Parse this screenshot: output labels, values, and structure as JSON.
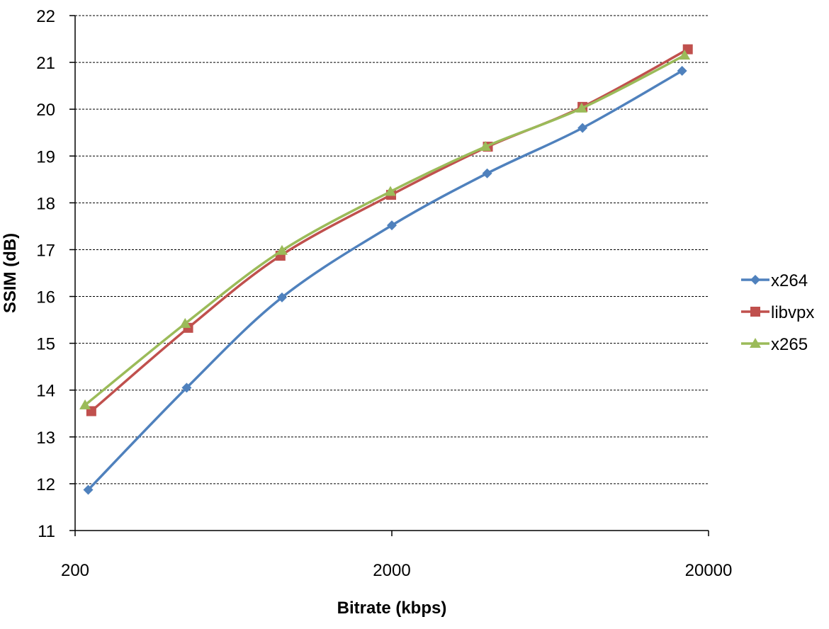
{
  "chart_data": {
    "type": "line",
    "xlabel": "Bitrate (kbps)",
    "ylabel": "SSIM (dB)",
    "xscale": "log",
    "xlim": [
      200,
      20000
    ],
    "ylim": [
      11,
      22
    ],
    "x_ticks": [
      "200",
      "2000",
      "20000"
    ],
    "y_ticks": [
      "11",
      "12",
      "13",
      "14",
      "15",
      "16",
      "17",
      "18",
      "19",
      "20",
      "21",
      "22"
    ],
    "grid": "horizontal dashed",
    "legend_position": "right",
    "series": [
      {
        "name": "x264",
        "color": "#4f81bd",
        "marker": "diamond",
        "x": [
          220,
          450,
          900,
          2000,
          4000,
          8000,
          16500
        ],
        "y": [
          11.87,
          14.05,
          15.98,
          17.52,
          18.63,
          19.6,
          20.82
        ]
      },
      {
        "name": "libvpx",
        "color": "#c0504d",
        "marker": "square",
        "x": [
          225,
          455,
          890,
          1990,
          4020,
          8000,
          17200
        ],
        "y": [
          13.55,
          15.33,
          16.87,
          18.17,
          19.2,
          20.05,
          21.28
        ]
      },
      {
        "name": "x265",
        "color": "#9bbb59",
        "marker": "triangle",
        "x": [
          215,
          445,
          900,
          1980,
          3950,
          7950,
          16800
        ],
        "y": [
          13.68,
          15.42,
          16.98,
          18.24,
          19.2,
          20.02,
          21.15
        ]
      }
    ]
  }
}
